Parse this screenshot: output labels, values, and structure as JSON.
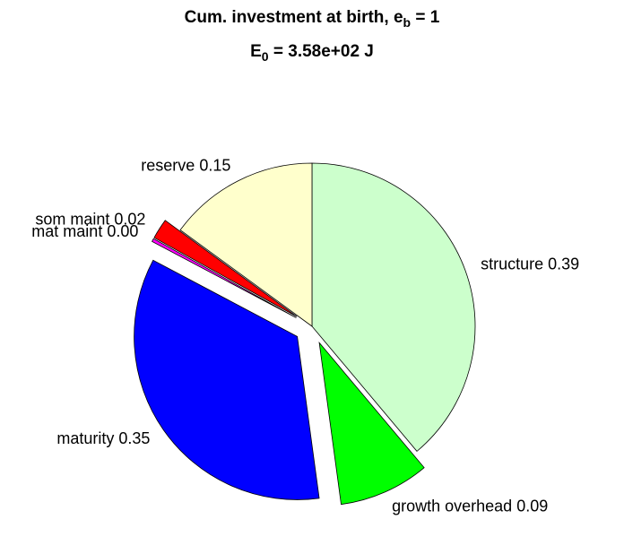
{
  "chart_data": {
    "type": "pie",
    "title": {
      "text": "Cum. investment at birth, e",
      "sub": "b",
      "after": " = 1"
    },
    "subtitle": {
      "text": "E",
      "sub": "0",
      "after": " = 3.58e+02 J"
    },
    "categories": [
      "structure",
      "growth overhead",
      "maturity",
      "mat maint",
      "som maint",
      "reserve"
    ],
    "values": [
      0.39,
      0.09,
      0.35,
      0.003,
      0.02,
      0.15
    ],
    "value_labels": [
      "0.39",
      "0.09",
      "0.35",
      "0.00",
      "0.02",
      "0.15"
    ],
    "colors": [
      "#ccffcc",
      "#00ff00",
      "#0000ff",
      "#ff00ff",
      "#ff0000",
      "#ffffcc"
    ],
    "explode": [
      false,
      true,
      true,
      true,
      true,
      false
    ]
  }
}
